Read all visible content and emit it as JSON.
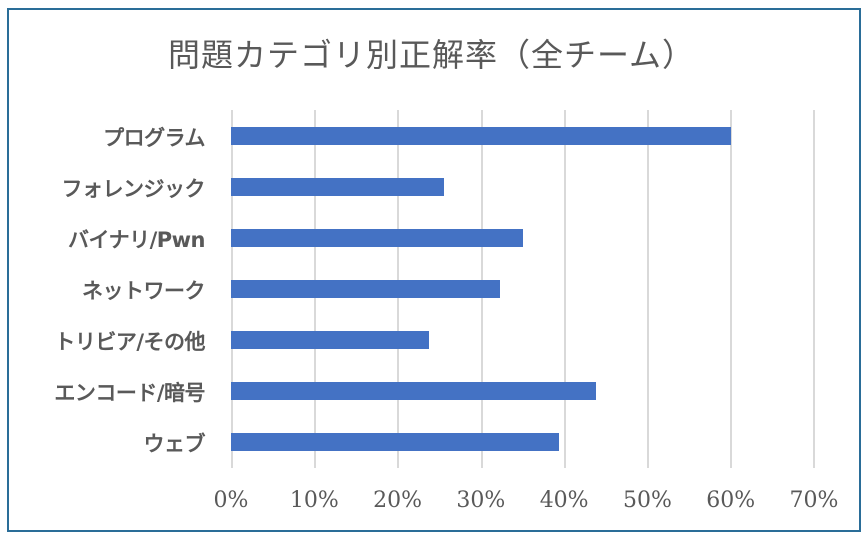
{
  "chart_data": {
    "type": "bar",
    "orientation": "horizontal",
    "title": "問題カテゴリ別正解率（全チーム）",
    "categories": [
      "プログラム",
      "フォレンジック",
      "バイナリ/Pwn",
      "ネットワーク",
      "トリビア/その他",
      "エンコード/暗号",
      "ウェブ"
    ],
    "values": [
      60,
      25.6,
      35.1,
      32.3,
      23.8,
      43.8,
      39.4
    ],
    "value_format": "percent",
    "xlabel": "",
    "ylabel": "",
    "xlim": [
      0,
      70
    ],
    "x_ticks": [
      "0%",
      "10%",
      "20%",
      "30%",
      "40%",
      "50%",
      "60%",
      "70%"
    ],
    "grid": "vertical",
    "legend": "none",
    "colors": {
      "bar": "#4472c4",
      "border": "#2a6d98",
      "grid": "#d9d9d9",
      "text": "#595959"
    }
  }
}
